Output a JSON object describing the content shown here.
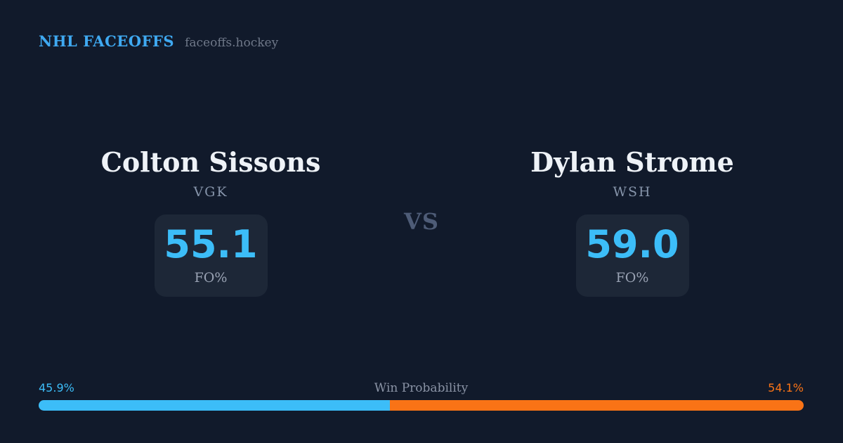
{
  "header": {
    "brand": "NHL FACEOFFS",
    "site": "faceoffs.hockey"
  },
  "matchup": {
    "vs_label": "VS",
    "players": [
      {
        "name": "Colton Sissons",
        "team": "VGK",
        "stat_value": "55.1",
        "stat_label": "FO%"
      },
      {
        "name": "Dylan Strome",
        "team": "WSH",
        "stat_value": "59.0",
        "stat_label": "FO%"
      }
    ]
  },
  "win_probability": {
    "title": "Win Probability",
    "left_pct_label": "45.9%",
    "right_pct_label": "54.1%",
    "left_value": 45.9,
    "right_value": 54.1
  },
  "colors": {
    "background": "#111a2b",
    "card_background": "#1d2737",
    "accent_blue": "#3cbdf8",
    "brand_blue": "#3fa9f1",
    "accent_orange": "#f97316",
    "name_white": "#eef2f7",
    "muted_gray": "#8a93a5",
    "vs_gray": "#4e5c77"
  },
  "chart_data": [
    {
      "type": "bar",
      "title": "Win Probability",
      "orientation": "horizontal-stacked",
      "categories": [
        "Colton Sissons",
        "Dylan Strome"
      ],
      "values": [
        45.9,
        54.1
      ],
      "unit": "%",
      "xlim": [
        0,
        100
      ],
      "legend_position": "none",
      "grid": false,
      "colors": [
        "#3cbdf8",
        "#f97316"
      ]
    },
    {
      "type": "table",
      "title": "FO%",
      "categories": [
        "Colton Sissons (VGK)",
        "Dylan Strome (WSH)"
      ],
      "values": [
        55.1,
        59.0
      ]
    }
  ]
}
